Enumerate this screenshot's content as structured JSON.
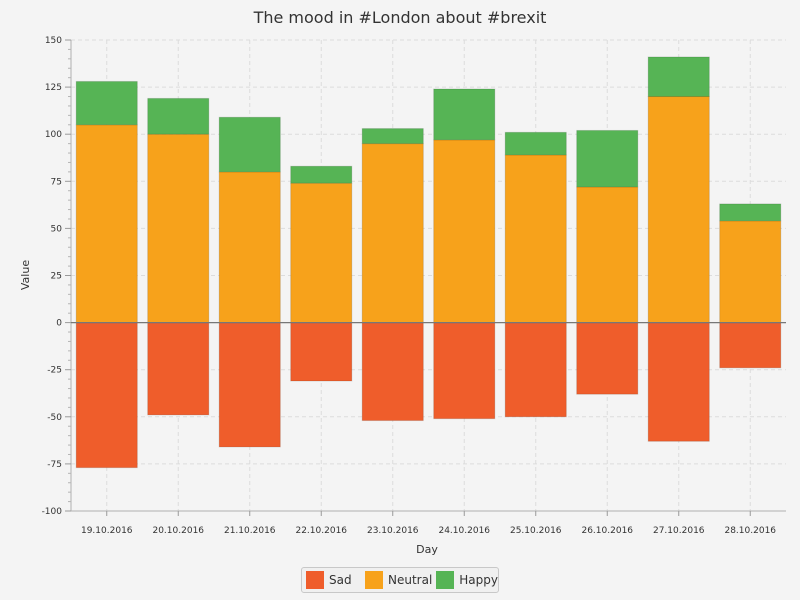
{
  "chart_data": {
    "type": "bar",
    "stacked": true,
    "title": "The mood in #London about #brexit",
    "xlabel": "Day",
    "ylabel": "Value",
    "ylim": [
      -100,
      150
    ],
    "yticks": [
      -100,
      -75,
      -50,
      -25,
      0,
      25,
      50,
      75,
      100,
      125,
      150
    ],
    "categories": [
      "19.10.2016",
      "20.10.2016",
      "21.10.2016",
      "22.10.2016",
      "23.10.2016",
      "24.10.2016",
      "25.10.2016",
      "26.10.2016",
      "27.10.2016",
      "28.10.2016"
    ],
    "series": [
      {
        "name": "Sad",
        "color": "#ef5d2b",
        "values": [
          -77,
          -49,
          -66,
          -31,
          -52,
          -51,
          -50,
          -38,
          -63,
          -24
        ]
      },
      {
        "name": "Neutral",
        "color": "#f7a21b",
        "values": [
          105,
          100,
          80,
          74,
          95,
          97,
          89,
          72,
          120,
          54
        ]
      },
      {
        "name": "Happy",
        "color": "#56b455",
        "values": [
          23,
          19,
          29,
          9,
          8,
          27,
          12,
          30,
          21,
          9
        ]
      }
    ],
    "legend_position": "bottom"
  }
}
